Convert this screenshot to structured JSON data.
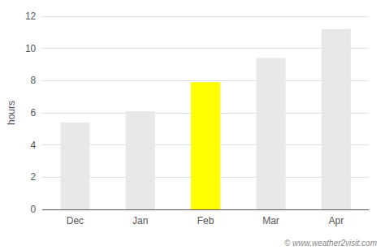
{
  "chart_data": {
    "type": "bar",
    "categories": [
      "Dec",
      "Jan",
      "Feb",
      "Mar",
      "Apr"
    ],
    "values": [
      5.4,
      6.1,
      7.9,
      9.4,
      11.2
    ],
    "colors": [
      "#e8e8e8",
      "#e8e8e8",
      "#ffff00",
      "#e8e8e8",
      "#e8e8e8"
    ],
    "ylabel": "hours",
    "ylim": [
      0,
      12
    ],
    "yticks": [
      0,
      2,
      4,
      6,
      8,
      10,
      12
    ],
    "grid": true,
    "annotations": [
      "© www.weather2visit.com"
    ]
  }
}
